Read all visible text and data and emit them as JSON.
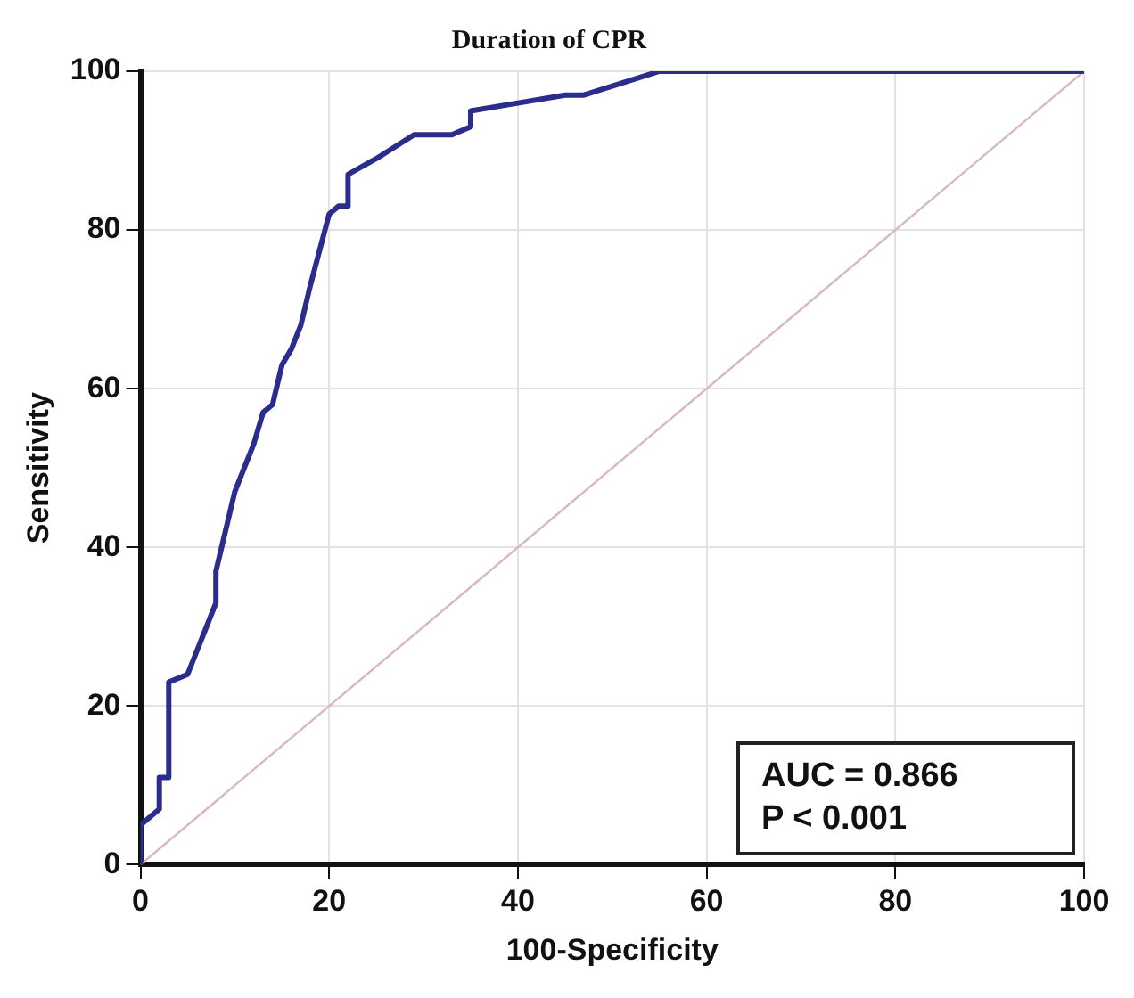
{
  "chart_data": {
    "type": "line",
    "title": "Duration of CPR",
    "xlabel": "100-Specificity",
    "ylabel": "Sensitivity",
    "xlim": [
      0,
      100
    ],
    "ylim": [
      0,
      100
    ],
    "xticks": [
      0,
      20,
      40,
      60,
      80,
      100
    ],
    "yticks": [
      0,
      20,
      40,
      60,
      80,
      100
    ],
    "grid": true,
    "legend": false,
    "marker": "none",
    "series": [
      {
        "color": "#2b2d8c",
        "x": [
          0,
          0,
          2,
          2,
          3,
          3,
          5,
          6,
          7,
          8,
          8,
          10,
          11,
          12,
          13,
          14,
          15,
          16,
          17,
          18,
          20,
          21,
          22,
          22,
          25,
          29,
          33,
          35,
          35,
          40,
          45,
          47,
          55,
          100
        ],
        "values": [
          0,
          5,
          7,
          11,
          11,
          23,
          24,
          27,
          30,
          33,
          37,
          47,
          50,
          53,
          57,
          58,
          63,
          65,
          68,
          73,
          82,
          83,
          83,
          87,
          89,
          92,
          92,
          93,
          95,
          96,
          97,
          97,
          100,
          100
        ]
      },
      {
        "color": "#d8b8c0",
        "x": [
          0,
          100
        ],
        "values": [
          0,
          100
        ]
      }
    ],
    "annotations": [
      "AUC = 0.866",
      "P < 0.001"
    ]
  }
}
